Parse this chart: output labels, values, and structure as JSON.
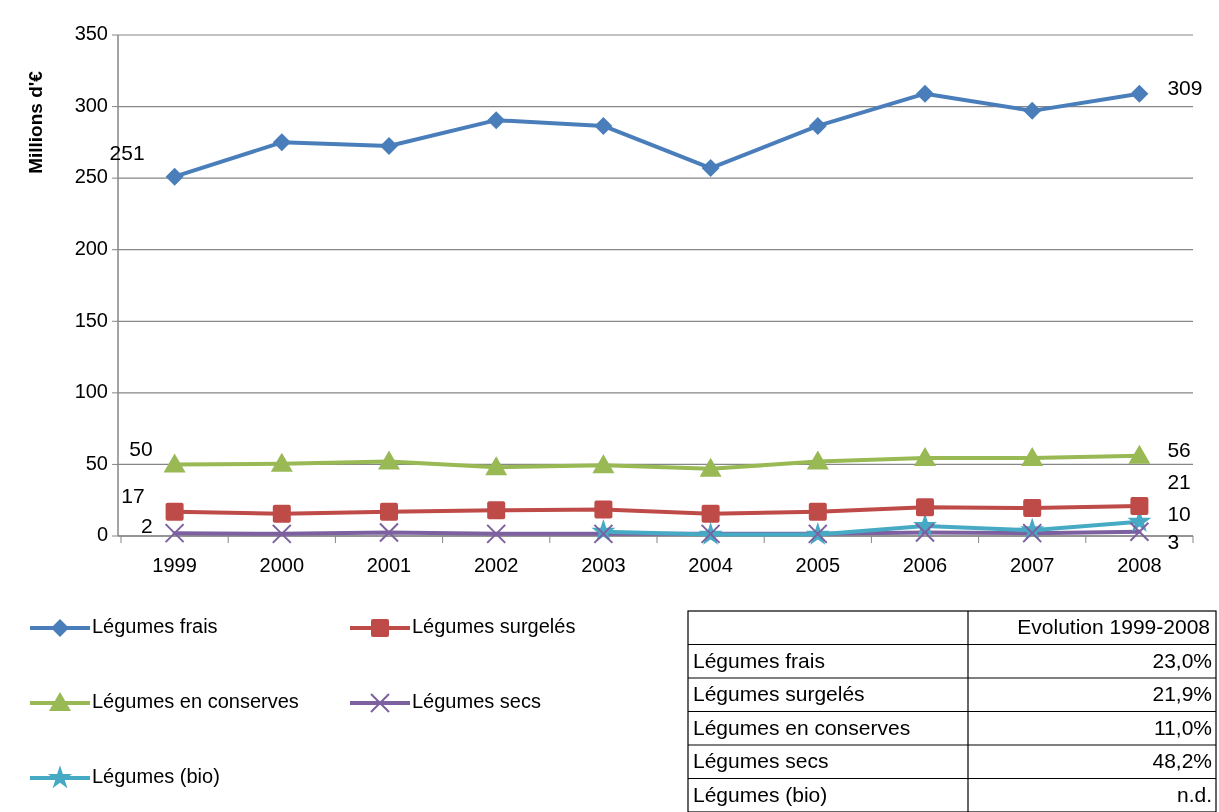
{
  "chart_data": {
    "type": "line",
    "ylabel": "Millions d'€",
    "categories": [
      "1999",
      "2000",
      "2001",
      "2002",
      "2003",
      "2004",
      "2005",
      "2006",
      "2007",
      "2008"
    ],
    "series": [
      {
        "name": "Légumes frais",
        "color": "#4a7ebb",
        "marker": "diamond",
        "values": [
          251,
          275,
          272.5,
          290.5,
          286.5,
          257,
          286.5,
          309,
          297,
          309
        ],
        "value_labels": [
          "251",
          null,
          null,
          null,
          null,
          null,
          null,
          null,
          null,
          "309"
        ]
      },
      {
        "name": "Légumes surgelés",
        "color": "#be4b48",
        "marker": "square",
        "values": [
          17,
          15.5,
          17,
          18,
          18.5,
          15.5,
          17,
          20,
          19.5,
          21
        ],
        "value_labels": [
          "17",
          null,
          null,
          null,
          null,
          null,
          null,
          null,
          null,
          "21"
        ]
      },
      {
        "name": "Légumes en conserves",
        "color": "#98b954",
        "marker": "triangle",
        "values": [
          50,
          50.5,
          52,
          48,
          49.5,
          47,
          52,
          54.5,
          54.5,
          56
        ],
        "value_labels": [
          "50",
          null,
          null,
          null,
          null,
          null,
          null,
          null,
          null,
          "56"
        ]
      },
      {
        "name": "Légumes secs",
        "color": "#7d60a0",
        "marker": "cross",
        "values": [
          2,
          1.5,
          2.5,
          1.5,
          1.5,
          1.5,
          1.5,
          2.5,
          2,
          3
        ],
        "value_labels": [
          "2",
          null,
          null,
          null,
          null,
          null,
          null,
          null,
          null,
          "3"
        ]
      },
      {
        "name": "Légumes (bio)",
        "color": "#46aac5",
        "marker": "star",
        "values": [
          null,
          null,
          null,
          null,
          3,
          1,
          1,
          7,
          4,
          10
        ],
        "value_labels": [
          null,
          null,
          null,
          null,
          null,
          null,
          null,
          null,
          null,
          "10"
        ]
      }
    ],
    "ylim": [
      0,
      350
    ],
    "yticks": [
      0,
      50,
      100,
      150,
      200,
      250,
      300,
      350
    ],
    "grid": "y",
    "legend": "bottom",
    "annotations": [
      "Evolution 1999-2008",
      "Légumes frais",
      "23,0%",
      "Légumes surgelés",
      "21,9%",
      "Légumes en conserves",
      "11,0%",
      "Légumes secs",
      "48,2%",
      "Légumes (bio)",
      "n.d."
    ]
  }
}
